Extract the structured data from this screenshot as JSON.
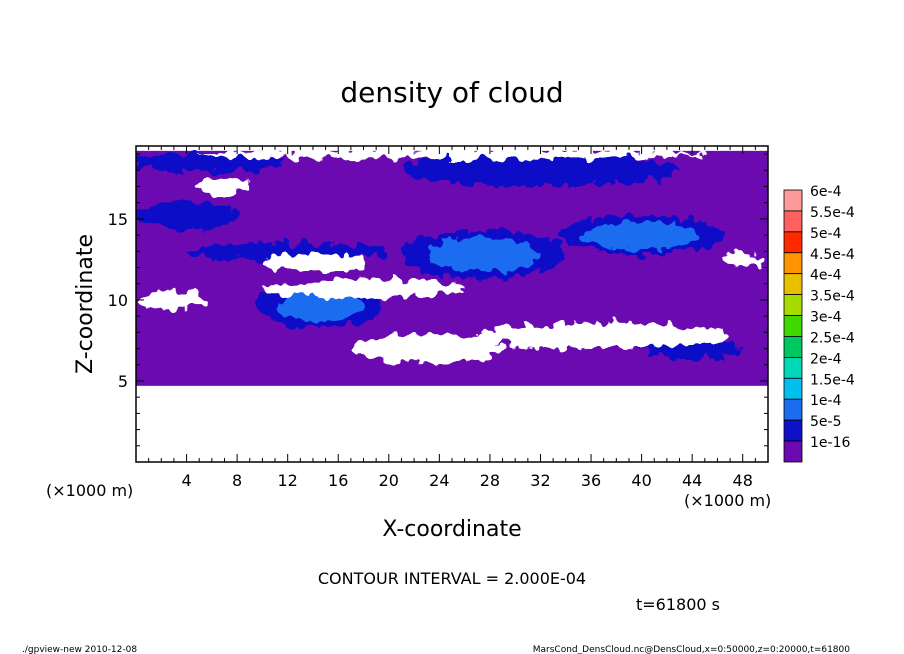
{
  "chart_data": {
    "type": "heatmap",
    "title": "density of cloud",
    "xlabel": "X-coordinate",
    "ylabel": "Z-coordinate",
    "x_units": "(×1000 m)",
    "y_units": "(×1000 m)",
    "xlim": [
      0,
      50
    ],
    "ylim": [
      0,
      19.5
    ],
    "x_ticks": [
      4,
      8,
      12,
      16,
      20,
      24,
      28,
      32,
      36,
      40,
      44,
      48
    ],
    "y_ticks": [
      5,
      10,
      15
    ],
    "colorbar": {
      "labels": [
        "6e-4",
        "5.5e-4",
        "5e-4",
        "4.5e-4",
        "4e-4",
        "3.5e-4",
        "3e-4",
        "2.5e-4",
        "2e-4",
        "1.5e-4",
        "1e-4",
        "5e-5",
        "1e-16"
      ],
      "colors": [
        "#ff9a9a",
        "#ff6060",
        "#ff2a00",
        "#ff9400",
        "#e8c000",
        "#a8dc00",
        "#40d800",
        "#00c860",
        "#00d8b8",
        "#00c0f0",
        "#1c6cf0",
        "#1010c8",
        "#6a0ab0"
      ]
    },
    "fill_color": "#6a0ab0",
    "data_region": {
      "z_min": 4.7,
      "z_max": 19.2
    },
    "blobs": [
      {
        "x": 14.5,
        "z": 9.6,
        "rx": 5.0,
        "rz": 1.3,
        "level": "1e-4"
      },
      {
        "x": 27.5,
        "z": 12.8,
        "rx": 6.5,
        "rz": 1.5,
        "level": "1e-4"
      },
      {
        "x": 40.0,
        "z": 14.0,
        "rx": 6.5,
        "rz": 1.2,
        "level": "1e-4"
      },
      {
        "x": 32.0,
        "z": 18.0,
        "rx": 11.0,
        "rz": 1.0,
        "level": "5e-5"
      },
      {
        "x": 6.0,
        "z": 18.5,
        "rx": 6.0,
        "rz": 0.6,
        "level": "5e-5"
      },
      {
        "x": 4.0,
        "z": 15.2,
        "rx": 4.0,
        "rz": 0.9,
        "level": "5e-5"
      },
      {
        "x": 12.0,
        "z": 13.0,
        "rx": 8.0,
        "rz": 0.5,
        "level": "5e-5"
      },
      {
        "x": 44.0,
        "z": 7.0,
        "rx": 4.0,
        "rz": 0.6,
        "level": "5e-5"
      }
    ],
    "clear_regions": [
      {
        "x": 23.0,
        "z": 7.0,
        "rx": 6.0,
        "rz": 0.9
      },
      {
        "x": 37.0,
        "z": 7.8,
        "rx": 10.0,
        "rz": 0.8
      },
      {
        "x": 18.0,
        "z": 10.7,
        "rx": 8.0,
        "rz": 0.6
      },
      {
        "x": 14.0,
        "z": 12.3,
        "rx": 4.0,
        "rz": 0.6
      },
      {
        "x": 7.0,
        "z": 17.0,
        "rx": 2.0,
        "rz": 0.5
      },
      {
        "x": 3.0,
        "z": 10.0,
        "rx": 2.5,
        "rz": 0.6
      },
      {
        "x": 25.0,
        "z": 19.0,
        "rx": 20.0,
        "rz": 0.3
      },
      {
        "x": 48.0,
        "z": 12.5,
        "rx": 1.5,
        "rz": 0.4
      }
    ],
    "contour_interval": "CONTOUR INTERVAL = 2.000E-04",
    "time_label": "t=61800 s"
  },
  "footer": {
    "program": "./gpview-new  2010-12-08",
    "source": "MarsCond_DensCloud.nc@DensCloud,x=0:50000,z=0:20000,t=61800"
  }
}
